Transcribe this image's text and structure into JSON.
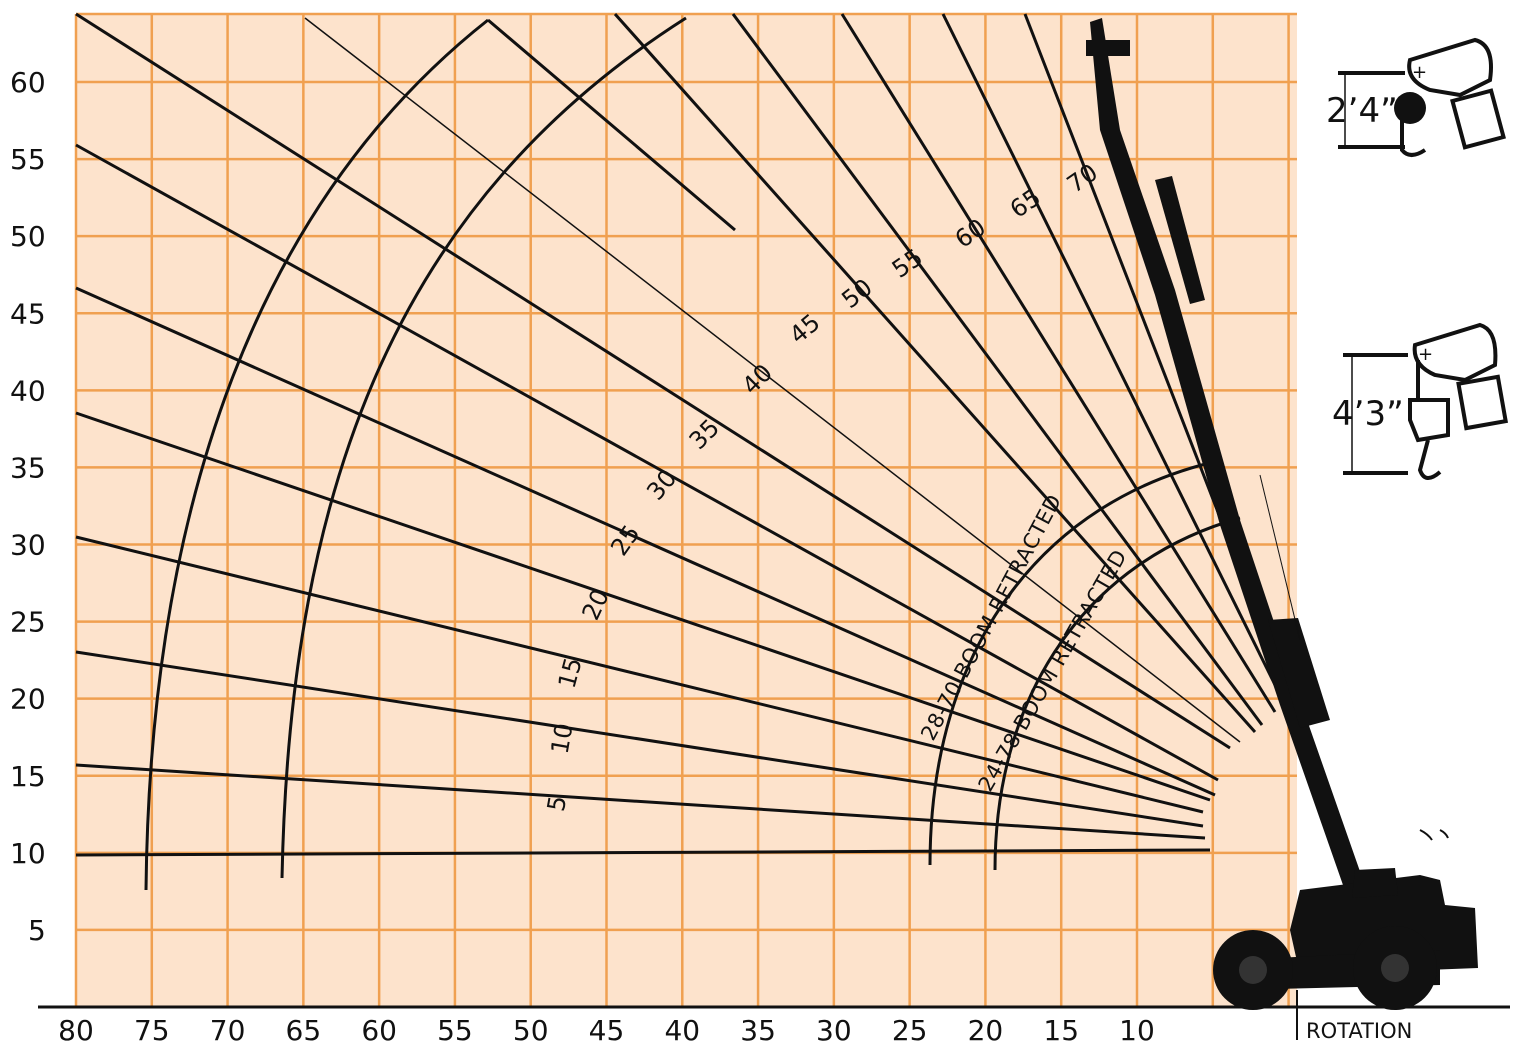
{
  "colors": {
    "grid_bg": "#fde3cc",
    "grid_line": "#f0a050",
    "ink": "#111111"
  },
  "y_axis_ticks": [
    "60",
    "55",
    "50",
    "45",
    "40",
    "35",
    "30",
    "25",
    "20",
    "15",
    "10",
    "5"
  ],
  "x_axis_ticks": [
    "80",
    "75",
    "70",
    "65",
    "60",
    "55",
    "50",
    "45",
    "40",
    "35",
    "30",
    "25",
    "20",
    "15",
    "10"
  ],
  "angle_labels": [
    "5",
    "10",
    "15",
    "20",
    "25",
    "30",
    "35",
    "40",
    "45",
    "50",
    "55",
    "60",
    "65",
    "70"
  ],
  "arc_labels": {
    "inner": "24-78 BOOM RETRACTED",
    "outer": "28-70 BOOM RETRACTED"
  },
  "hook_top_dimension": "2’4”",
  "hook_bottom_dimension": "4’3”",
  "rotation_label": "ROTATION",
  "icons": {
    "machine": "telehandler-silhouette-icon",
    "hook_top": "hook-block-icon",
    "hook_bottom": "hook-block-icon"
  }
}
